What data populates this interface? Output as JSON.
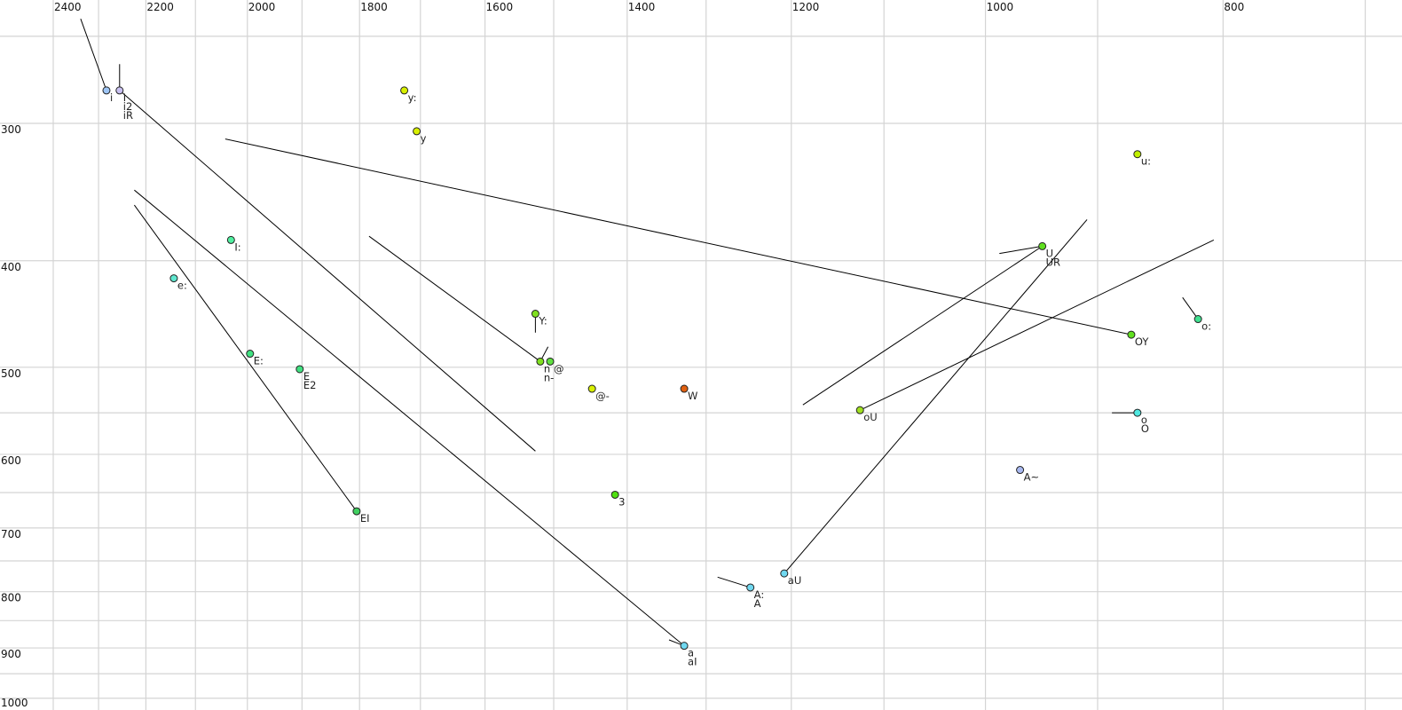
{
  "chart_data": {
    "type": "scatter",
    "title": "",
    "xlabel": "",
    "ylabel": "",
    "x_axis": {
      "quantity": "F2",
      "scale": "log",
      "reversed": true,
      "range": [
        2400,
        700
      ],
      "tick_labels": [
        2400,
        2200,
        2000,
        1800,
        1600,
        1400,
        1200,
        1000,
        800
      ],
      "gridlines": [
        2400,
        2300,
        2200,
        2100,
        2000,
        1900,
        1800,
        1700,
        1600,
        1500,
        1400,
        1300,
        1200,
        1100,
        1000,
        900,
        800,
        700
      ]
    },
    "y_axis": {
      "quantity": "F1",
      "scale": "log",
      "reversed": false,
      "range": [
        230,
        1000
      ],
      "tick_labels": [
        300,
        400,
        500,
        600,
        700,
        800,
        900,
        1000
      ],
      "gridlines": [
        250,
        300,
        400,
        500,
        550,
        600,
        650,
        700,
        750,
        800,
        850,
        900,
        950,
        1000
      ]
    },
    "grid": true,
    "points": [
      {
        "labels": [
          "i"
        ],
        "f2": 2283,
        "f1": 280,
        "color": "#9ec5f5"
      },
      {
        "labels": [
          "I",
          "i2",
          "iR"
        ],
        "f2": 2255,
        "f1": 280,
        "color": "#c8c0f0"
      },
      {
        "labels": [
          "y:"
        ],
        "f2": 1726,
        "f1": 280,
        "color": "#d8f000"
      },
      {
        "labels": [
          "y"
        ],
        "f2": 1706,
        "f1": 305,
        "color": "#d8f000"
      },
      {
        "labels": [
          "I:"
        ],
        "f2": 2031,
        "f1": 383,
        "color": "#50f0a0"
      },
      {
        "labels": [
          "e:"
        ],
        "f2": 2143,
        "f1": 415,
        "color": "#60e8d0"
      },
      {
        "labels": [
          "E:"
        ],
        "f2": 1995,
        "f1": 486,
        "color": "#40e080"
      },
      {
        "labels": [
          "E",
          "E2"
        ],
        "f2": 1904,
        "f1": 502,
        "color": "#40e080"
      },
      {
        "labels": [
          "EI"
        ],
        "f2": 1805,
        "f1": 676,
        "color": "#40d060"
      },
      {
        "labels": [
          "Y:"
        ],
        "f2": 1526,
        "f1": 447,
        "color": "#80e020"
      },
      {
        "labels": [
          "n",
          "n-"
        ],
        "f2": 1519,
        "f1": 494,
        "color": "#80e020"
      },
      {
        "labels": [
          "@"
        ],
        "f2": 1505,
        "f1": 494,
        "color": "#60e040"
      },
      {
        "labels": [
          "@-"
        ],
        "f2": 1447,
        "f1": 523,
        "color": "#d8f000"
      },
      {
        "labels": [
          "W"
        ],
        "f2": 1327,
        "f1": 523,
        "color": "#e06010"
      },
      {
        "labels": [
          "3"
        ],
        "f2": 1416,
        "f1": 653,
        "color": "#50e010"
      },
      {
        "labels": [
          "a",
          "aI"
        ],
        "f2": 1327,
        "f1": 896,
        "color": "#70d8f0"
      },
      {
        "labels": [
          "A:",
          "A"
        ],
        "f2": 1247,
        "f1": 793,
        "color": "#70d8f0"
      },
      {
        "labels": [
          "aU"
        ],
        "f2": 1208,
        "f1": 770,
        "color": "#70d8f0"
      },
      {
        "labels": [
          "oU"
        ],
        "f2": 1125,
        "f1": 547,
        "color": "#a0e020"
      },
      {
        "labels": [
          "U",
          "UR"
        ],
        "f2": 948,
        "f1": 388,
        "color": "#60e020"
      },
      {
        "labels": [
          "OY"
        ],
        "f2": 872,
        "f1": 467,
        "color": "#60e020"
      },
      {
        "labels": [
          "u:"
        ],
        "f2": 867,
        "f1": 320,
        "color": "#c0f000"
      },
      {
        "labels": [
          "o:"
        ],
        "f2": 819,
        "f1": 452,
        "color": "#40e090"
      },
      {
        "labels": [
          "o",
          "O"
        ],
        "f2": 867,
        "f1": 550,
        "color": "#50e8e0"
      },
      {
        "labels": [
          "A~"
        ],
        "f2": 968,
        "f1": 620,
        "color": "#a8b8f0"
      }
    ],
    "trajectories": [
      {
        "from": [
          2339,
          241
        ],
        "to": [
          2283,
          280
        ]
      },
      {
        "from": [
          2255,
          265
        ],
        "to": [
          2255,
          280
        ]
      },
      {
        "from": [
          2255,
          280
        ],
        "to": [
          1526,
          596
        ]
      },
      {
        "from": [
          2224,
          356
        ],
        "to": [
          1805,
          676
        ]
      },
      {
        "from": [
          2224,
          345
        ],
        "to": [
          1327,
          896
        ]
      },
      {
        "from": [
          1346,
          885
        ],
        "to": [
          1327,
          896
        ]
      },
      {
        "from": [
          1286,
          776
        ],
        "to": [
          1247,
          793
        ]
      },
      {
        "from": [
          1208,
          770
        ],
        "to": [
          909,
          367
        ]
      },
      {
        "from": [
          1125,
          547
        ],
        "to": [
          807,
          383
        ]
      },
      {
        "from": [
          1187,
          541
        ],
        "to": [
          948,
          388
        ]
      },
      {
        "from": [
          987,
          394
        ],
        "to": [
          948,
          388
        ]
      },
      {
        "from": [
          2042,
          310
        ],
        "to": [
          872,
          467
        ]
      },
      {
        "from": [
          831,
          432
        ],
        "to": [
          819,
          452
        ]
      },
      {
        "from": [
          888,
          550
        ],
        "to": [
          867,
          550
        ]
      },
      {
        "from": [
          1784,
          380
        ],
        "to": [
          1519,
          494
        ]
      },
      {
        "from": [
          1519,
          494
        ],
        "to": [
          1508,
          479
        ]
      },
      {
        "from": [
          1526,
          447
        ],
        "to": [
          1526,
          465
        ]
      }
    ]
  }
}
